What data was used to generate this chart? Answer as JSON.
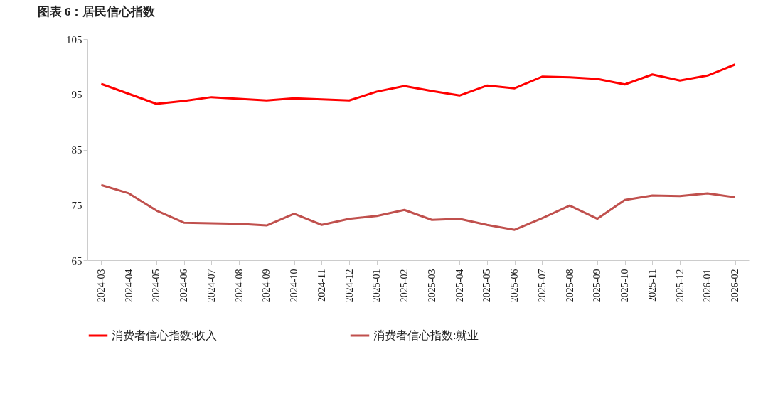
{
  "chart_data": {
    "type": "line",
    "title": "图表 6：居民信心指数",
    "categories": [
      "2024-03",
      "2024-04",
      "2024-05",
      "2024-06",
      "2024-07",
      "2024-08",
      "2024-09",
      "2024-10",
      "2024-11",
      "2024-12",
      "2025-01",
      "2025-02",
      "2025-03",
      "2025-04",
      "2025-05",
      "2025-06",
      "2025-07",
      "2025-08",
      "2025-09",
      "2025-10",
      "2025-11",
      "2025-12",
      "2026-01",
      "2026-02"
    ],
    "series": [
      {
        "name": "消费者信心指数:收入",
        "color": "#ff0000",
        "values": [
          96.9,
          95.1,
          93.3,
          93.8,
          94.5,
          94.2,
          93.9,
          94.3,
          94.1,
          93.9,
          95.5,
          96.5,
          95.6,
          94.8,
          96.6,
          96.1,
          98.2,
          98.1,
          97.8,
          96.8,
          98.6,
          97.5,
          98.4,
          100.4
        ]
      },
      {
        "name": "消费者信心指数:就业",
        "color": "#c0504d",
        "values": [
          78.6,
          77.1,
          74.0,
          71.8,
          71.7,
          71.6,
          71.3,
          73.4,
          71.4,
          72.5,
          73.0,
          74.1,
          72.3,
          72.5,
          71.4,
          70.5,
          72.6,
          74.9,
          72.5,
          75.9,
          76.7,
          76.6,
          77.1,
          76.4
        ]
      }
    ],
    "ylim": [
      65,
      105
    ],
    "yticks": [
      65,
      75,
      85,
      95,
      105
    ],
    "grid": false,
    "legend": "bottom",
    "marker": "none",
    "line_style": "solid"
  }
}
